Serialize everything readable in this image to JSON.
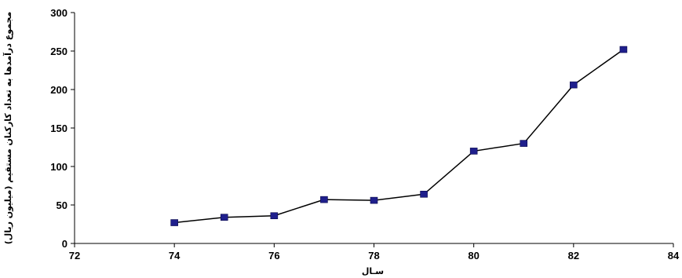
{
  "chart_data": {
    "type": "line",
    "xlabel": "سـال",
    "ylabel": "مجموع درآمدها به تعداد کارکنان مستقیم (میلیون ریال)",
    "xlim": [
      72,
      84
    ],
    "ylim": [
      0,
      300
    ],
    "xticks": [
      72,
      74,
      76,
      78,
      80,
      82,
      84
    ],
    "yticks": [
      0,
      50,
      100,
      150,
      200,
      250,
      300
    ],
    "grid": false,
    "series": [
      {
        "x": [
          74,
          75,
          76,
          77,
          78,
          79,
          80,
          81,
          82,
          83
        ],
        "y": [
          27,
          34,
          36,
          57,
          56,
          64,
          120,
          130,
          206,
          252
        ]
      }
    ],
    "colors": {
      "line": "#000000",
      "marker": "#1f1f8c",
      "axis": "#000000"
    }
  }
}
